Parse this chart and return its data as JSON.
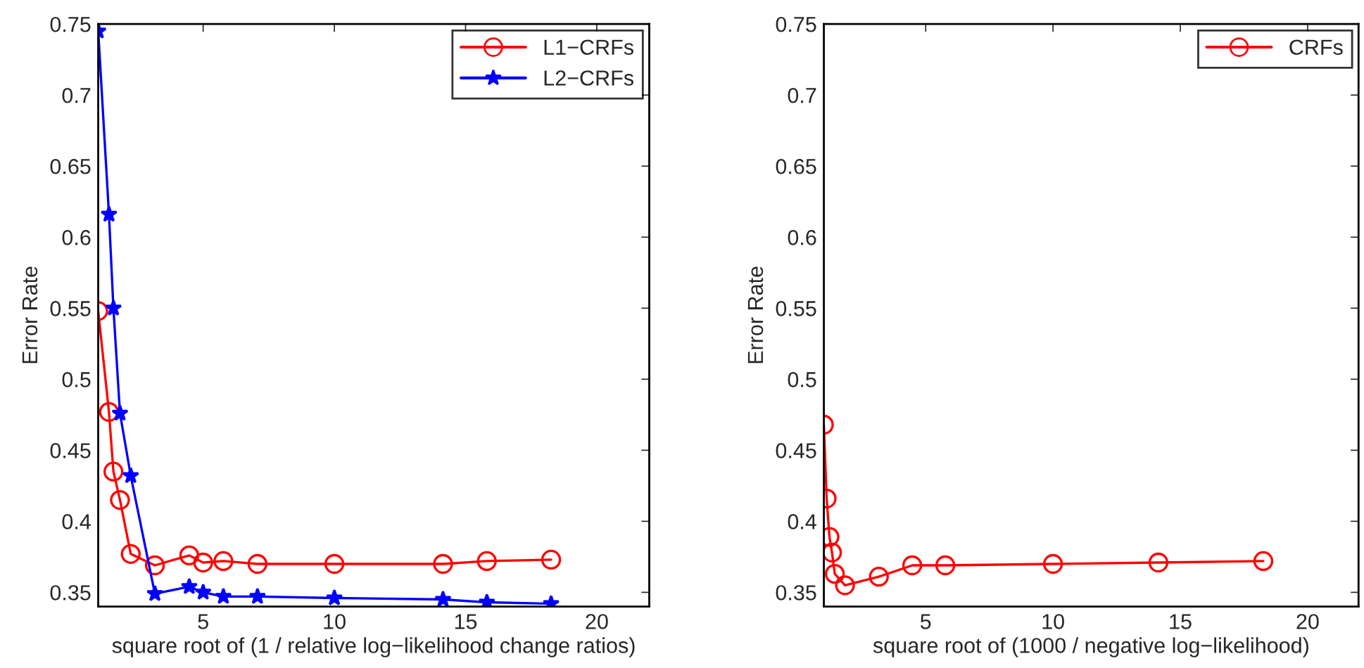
{
  "chart_data": [
    {
      "type": "line",
      "xlabel": "square root of (1 / relative log−likelihood change ratios)",
      "ylabel": "Error Rate",
      "xlim": [
        1,
        22
      ],
      "xticks": [
        5,
        10,
        15,
        20
      ],
      "ylim": [
        0.34,
        0.75
      ],
      "yticks": [
        0.35,
        {
          "value": 0.4,
          "label": "0.4"
        },
        0.45,
        {
          "value": 0.5,
          "label": "0.5"
        },
        0.55,
        {
          "value": 0.6,
          "label": "0.6"
        },
        0.65,
        {
          "value": 0.7,
          "label": "0.7"
        },
        0.75
      ],
      "legend": "top right",
      "grid": false,
      "line_style": "solid",
      "series": [
        {
          "name": "L1−CRFs",
          "color": "#ff0000",
          "marker": "circle",
          "x": [
            1,
            1.41,
            1.58,
            1.83,
            2.24,
            3.16,
            4.47,
            5,
            5.77,
            7.07,
            10,
            14.14,
            15.81,
            18.26
          ],
          "values": [
            0.548,
            0.477,
            0.435,
            0.415,
            0.377,
            0.369,
            0.376,
            0.371,
            0.372,
            0.37,
            0.37,
            0.37,
            0.372,
            0.373
          ]
        },
        {
          "name": "L2−CRFs",
          "color": "#0000ff",
          "marker": "star",
          "x": [
            1,
            1.41,
            1.58,
            1.83,
            2.24,
            3.16,
            4.47,
            5,
            5.77,
            7.07,
            10,
            14.14,
            15.81,
            18.26
          ],
          "values": [
            0.745,
            0.616,
            0.55,
            0.476,
            0.432,
            0.349,
            0.354,
            0.35,
            0.347,
            0.347,
            0.346,
            0.345,
            0.343,
            0.342
          ]
        }
      ]
    },
    {
      "type": "line",
      "xlabel": "square root of (1000 / negative log−likelihood)",
      "ylabel": "Error Rate",
      "xlim": [
        1,
        22
      ],
      "xticks": [
        5,
        10,
        15,
        20
      ],
      "ylim": [
        0.34,
        0.75
      ],
      "yticks": [
        0.35,
        {
          "value": 0.4,
          "label": "0.4"
        },
        0.45,
        {
          "value": 0.5,
          "label": "0.5"
        },
        0.55,
        {
          "value": 0.6,
          "label": "0.6"
        },
        0.65,
        {
          "value": 0.7,
          "label": "0.7"
        },
        0.75
      ],
      "legend": "top right",
      "grid": false,
      "line_style": "solid",
      "series": [
        {
          "name": "CRFs",
          "color": "#ff0000",
          "marker": "circle",
          "x": [
            1,
            1.11,
            1.22,
            1.32,
            1.43,
            1.83,
            3.16,
            4.47,
            5.77,
            10,
            14.14,
            18.26
          ],
          "values": [
            0.468,
            0.416,
            0.389,
            0.378,
            0.363,
            0.355,
            0.361,
            0.369,
            0.369,
            0.37,
            0.371,
            0.372
          ]
        }
      ]
    }
  ]
}
